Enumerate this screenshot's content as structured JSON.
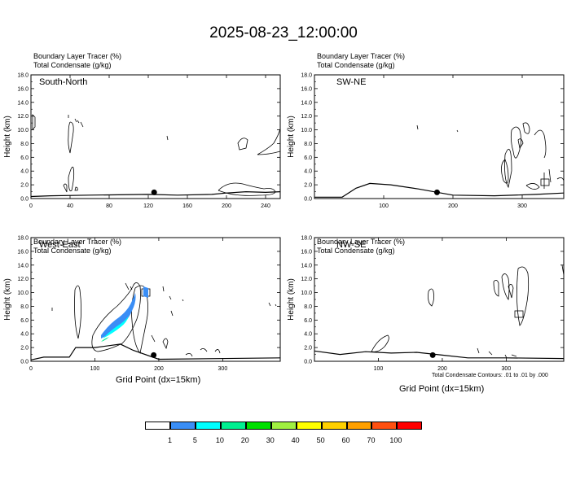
{
  "title": "2025-08-23_12:00:00",
  "panels": [
    {
      "id": "south-north",
      "tracer_label": "Boundary Layer Tracer   (%)",
      "condensate_label": "Total Condensate   (g/kg)",
      "name": "South-North",
      "xticks": [
        0,
        40,
        80,
        120,
        160,
        200,
        240
      ],
      "xmax": 255,
      "marker_x": 126
    },
    {
      "id": "sw-ne",
      "tracer_label": "Boundary Layer Tracer   (%)",
      "condensate_label": "Total Condensate   (g/kg)",
      "name": "SW-NE",
      "xticks": [
        100,
        200,
        300
      ],
      "xmax": 360,
      "marker_x": 177
    },
    {
      "id": "west-east",
      "tracer_label": "Boundary Layer Tracer   (%)",
      "condensate_label": "Total Condensate   (g/kg)",
      "name": "West-East",
      "xticks": [
        0,
        100,
        200,
        300
      ],
      "xmax": 390,
      "marker_x": 192
    },
    {
      "id": "nw-se",
      "tracer_label": "Boundary Layer Tracer   (%)",
      "condensate_label": "Total Condensate   (g/kg)",
      "name": "NW-SE",
      "xticks": [
        100,
        200,
        300
      ],
      "xmax": 390,
      "marker_x": 185
    }
  ],
  "yaxis": {
    "label": "Height (km)",
    "ticks": [
      "0.0",
      "2.0",
      "4.0",
      "6.0",
      "8.0",
      "10.0",
      "12.0",
      "14.0",
      "16.0",
      "18.0"
    ],
    "ylim": [
      0,
      18
    ]
  },
  "xlabel": "Grid Point (dx=15km)",
  "contour_note": "Total Condensate Contours: .01 to .01 by .000",
  "colorbar": {
    "labels": [
      "1",
      "5",
      "10",
      "20",
      "30",
      "40",
      "50",
      "60",
      "70",
      "100"
    ],
    "colors": [
      "#ffffff",
      "#3a8ef6",
      "#00ffff",
      "#00f090",
      "#00e000",
      "#a0f040",
      "#ffff00",
      "#ffd000",
      "#ffa000",
      "#ff5010",
      "#ff0000"
    ]
  },
  "chart_data": [
    {
      "type": "heatmap",
      "title": "South-North",
      "xlabel": "",
      "ylabel": "Height (km)",
      "xlim": [
        0,
        255
      ],
      "ylim": [
        0,
        18
      ],
      "terrain": [
        [
          0,
          0.3
        ],
        [
          20,
          0.4
        ],
        [
          60,
          0.5
        ],
        [
          120,
          0.6
        ],
        [
          150,
          0.5
        ],
        [
          185,
          0.6
        ],
        [
          200,
          0.8
        ],
        [
          220,
          1.0
        ],
        [
          240,
          0.9
        ],
        [
          255,
          1.0
        ]
      ],
      "shaded_regions": []
    },
    {
      "type": "heatmap",
      "title": "SW-NE",
      "xlabel": "",
      "ylabel": "Height (km)",
      "xlim": [
        0,
        360
      ],
      "ylim": [
        0,
        18
      ],
      "terrain": [
        [
          0,
          0.2
        ],
        [
          40,
          0.2
        ],
        [
          60,
          1.5
        ],
        [
          80,
          2.2
        ],
        [
          110,
          2.0
        ],
        [
          150,
          1.4
        ],
        [
          200,
          0.5
        ],
        [
          260,
          0.4
        ],
        [
          320,
          0.6
        ],
        [
          360,
          0.8
        ]
      ],
      "shaded_regions": []
    },
    {
      "type": "heatmap",
      "title": "West-East",
      "xlabel": "Grid Point (dx=15km)",
      "ylabel": "Height (km)",
      "xlim": [
        0,
        390
      ],
      "ylim": [
        0,
        18
      ],
      "terrain": [
        [
          0,
          0.2
        ],
        [
          20,
          0.6
        ],
        [
          60,
          0.6
        ],
        [
          70,
          2.0
        ],
        [
          100,
          2.0
        ],
        [
          140,
          2.5
        ],
        [
          160,
          1.6
        ],
        [
          200,
          0.3
        ],
        [
          390,
          0.5
        ]
      ],
      "shaded_regions": [
        {
          "range": "1-5",
          "color": "#3a8ef6"
        },
        {
          "range": "5-10",
          "color": "#00ffff"
        },
        {
          "range": "10-20",
          "color": "#00f090"
        }
      ]
    },
    {
      "type": "heatmap",
      "title": "NW-SE",
      "xlabel": "Grid Point (dx=15km)",
      "ylabel": "Height (km)",
      "xlim": [
        0,
        390
      ],
      "ylim": [
        0,
        18
      ],
      "terrain": [
        [
          0,
          1.5
        ],
        [
          40,
          1.0
        ],
        [
          80,
          1.4
        ],
        [
          120,
          1.2
        ],
        [
          160,
          1.3
        ],
        [
          200,
          0.9
        ],
        [
          240,
          0.5
        ],
        [
          300,
          0.5
        ],
        [
          390,
          0.4
        ]
      ],
      "shaded_regions": []
    }
  ]
}
